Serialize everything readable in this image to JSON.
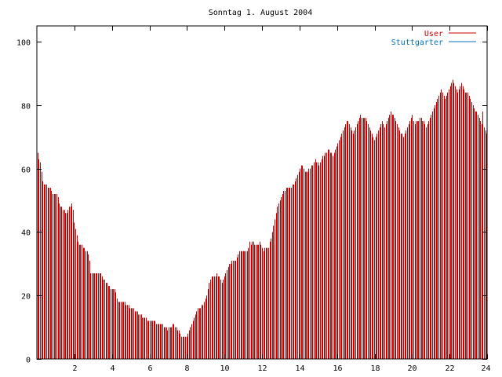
{
  "chart_data": {
    "type": "bar",
    "title": "Sonntag 1. August 2004",
    "xlabel": "",
    "ylabel": "",
    "xlim": [
      0,
      24
    ],
    "ylim": [
      0,
      105
    ],
    "x_ticks": [
      2,
      4,
      6,
      8,
      10,
      12,
      14,
      16,
      18,
      20,
      22,
      24
    ],
    "y_ticks": [
      0,
      20,
      40,
      60,
      80,
      100
    ],
    "legend_position": "top-right",
    "grid": false,
    "series": [
      {
        "name": "User",
        "color": "#cc0000",
        "values": [
          65,
          63,
          62,
          59,
          56,
          55,
          55,
          55,
          54,
          54,
          54,
          53,
          52,
          52,
          52,
          52,
          51,
          49,
          48,
          48,
          47,
          47,
          46,
          46,
          47,
          48,
          48,
          49,
          47,
          43,
          41,
          39,
          37,
          36,
          36,
          36,
          35,
          35,
          34,
          34,
          33,
          31,
          27,
          27,
          27,
          27,
          27,
          27,
          27,
          27,
          27,
          26,
          25,
          25,
          24,
          24,
          23,
          23,
          22,
          22,
          22,
          22,
          21,
          19,
          18,
          18,
          18,
          18,
          18,
          18,
          17,
          17,
          17,
          16,
          16,
          16,
          16,
          15,
          15,
          15,
          14,
          14,
          14,
          13,
          13,
          13,
          13,
          12,
          12,
          12,
          12,
          12,
          12,
          12,
          11,
          11,
          11,
          11,
          11,
          11,
          10,
          10,
          10,
          9,
          10,
          10,
          10,
          11,
          11,
          10,
          10,
          9,
          9,
          8,
          7,
          7,
          7,
          7,
          7,
          8,
          9,
          10,
          11,
          12,
          13,
          14,
          15,
          16,
          16,
          16,
          17,
          17,
          18,
          19,
          20,
          22,
          24,
          25,
          26,
          26,
          26,
          26,
          27,
          26,
          26,
          25,
          24,
          25,
          26,
          27,
          28,
          29,
          30,
          30,
          31,
          31,
          31,
          31,
          32,
          33,
          34,
          34,
          34,
          34,
          34,
          34,
          34,
          35,
          37,
          36,
          37,
          37,
          36,
          36,
          36,
          36,
          37,
          36,
          35,
          34,
          35,
          35,
          35,
          35,
          37,
          38,
          40,
          42,
          44,
          46,
          48,
          49,
          50,
          51,
          52,
          53,
          53,
          54,
          54,
          54,
          54,
          54,
          55,
          55,
          56,
          57,
          58,
          59,
          60,
          61,
          61,
          60,
          59,
          59,
          59,
          60,
          60,
          61,
          61,
          62,
          63,
          62,
          62,
          61,
          62,
          63,
          64,
          64,
          65,
          65,
          66,
          66,
          65,
          65,
          64,
          65,
          66,
          67,
          68,
          69,
          70,
          71,
          72,
          73,
          74,
          75,
          75,
          74,
          73,
          72,
          71,
          72,
          73,
          74,
          75,
          76,
          77,
          76,
          76,
          76,
          76,
          75,
          74,
          73,
          72,
          71,
          70,
          69,
          70,
          71,
          72,
          73,
          74,
          75,
          74,
          73,
          74,
          75,
          76,
          77,
          78,
          77,
          77,
          76,
          75,
          74,
          73,
          72,
          71,
          71,
          70,
          71,
          72,
          73,
          74,
          75,
          76,
          77,
          75,
          74,
          75,
          75,
          75,
          76,
          76,
          75,
          75,
          74,
          73,
          74,
          75,
          76,
          77,
          78,
          79,
          80,
          81,
          82,
          83,
          84,
          85,
          84,
          83,
          82,
          83,
          84,
          85,
          86,
          87,
          88,
          87,
          86,
          85,
          84,
          85,
          86,
          87,
          86,
          85,
          84,
          84,
          84,
          83,
          82,
          81,
          80,
          79,
          78,
          78,
          77,
          76,
          75,
          74,
          78,
          73,
          72,
          71
        ]
      },
      {
        "name": "Stuttgarter",
        "color": "#0070c0",
        "values": []
      }
    ]
  }
}
